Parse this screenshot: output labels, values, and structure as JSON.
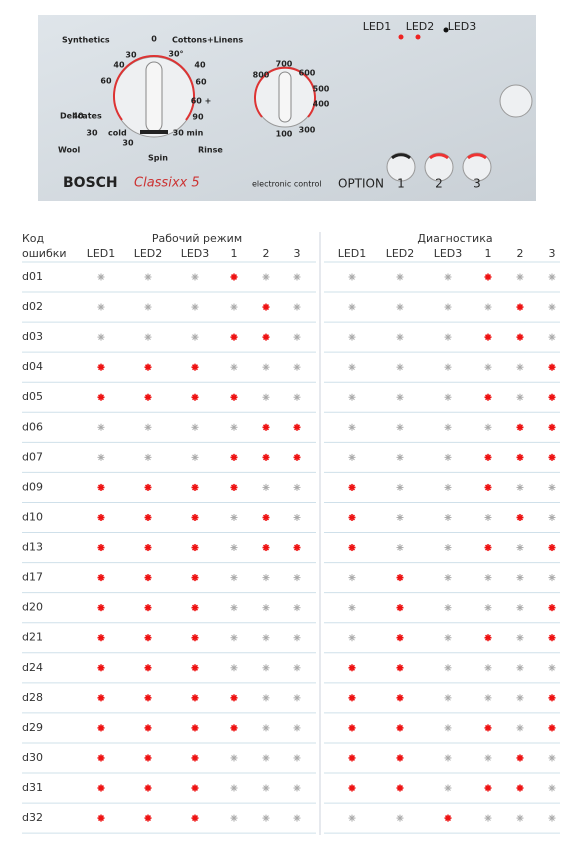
{
  "panel": {
    "brand": "BOSCH",
    "model": "Classixx 5",
    "subtitle": "electronic control",
    "option": "OPTION",
    "leds": [
      "LED1",
      "LED2",
      "LED3"
    ],
    "buttons": [
      "1",
      "2",
      "3"
    ],
    "programs": [
      "Synthetics",
      "Cottons+Linens",
      "Delicates",
      "Wool",
      "cold",
      "Spin",
      "Rinse"
    ],
    "temperature_marks": [
      "0",
      "30°",
      "40",
      "60",
      "60 +",
      "90",
      "30 min",
      "30",
      "40",
      "60",
      "40",
      "30",
      "30"
    ],
    "spin_marks": [
      "800",
      "700",
      "600",
      "500",
      "400",
      "300",
      "100"
    ]
  },
  "table": {
    "code_header": [
      "Код",
      "ошибки"
    ],
    "groups": [
      "Рабочий режим",
      "Диагностика"
    ],
    "columns": [
      "LED1",
      "LED2",
      "LED3",
      "1",
      "2",
      "3"
    ],
    "rows": [
      {
        "code": "d01",
        "work": [
          false,
          false,
          false,
          true,
          false,
          false
        ],
        "diagnostics": [
          false,
          false,
          false,
          true,
          false,
          false
        ]
      },
      {
        "code": "d02",
        "work": [
          false,
          false,
          false,
          false,
          true,
          false
        ],
        "diagnostics": [
          false,
          false,
          false,
          false,
          true,
          false
        ]
      },
      {
        "code": "d03",
        "work": [
          false,
          false,
          false,
          true,
          true,
          false
        ],
        "diagnostics": [
          false,
          false,
          false,
          true,
          true,
          false
        ]
      },
      {
        "code": "d04",
        "work": [
          true,
          true,
          true,
          false,
          false,
          false
        ],
        "diagnostics": [
          false,
          false,
          false,
          false,
          false,
          true
        ]
      },
      {
        "code": "d05",
        "work": [
          true,
          true,
          true,
          true,
          false,
          false
        ],
        "diagnostics": [
          false,
          false,
          false,
          true,
          false,
          true
        ]
      },
      {
        "code": "d06",
        "work": [
          false,
          false,
          false,
          false,
          true,
          true
        ],
        "diagnostics": [
          false,
          false,
          false,
          false,
          true,
          true
        ]
      },
      {
        "code": "d07",
        "work": [
          false,
          false,
          false,
          true,
          true,
          true
        ],
        "diagnostics": [
          false,
          false,
          false,
          true,
          true,
          true
        ]
      },
      {
        "code": "d09",
        "work": [
          true,
          true,
          true,
          true,
          false,
          false
        ],
        "diagnostics": [
          true,
          false,
          false,
          true,
          false,
          false
        ]
      },
      {
        "code": "d10",
        "work": [
          true,
          true,
          true,
          false,
          true,
          false
        ],
        "diagnostics": [
          true,
          false,
          false,
          false,
          true,
          false
        ]
      },
      {
        "code": "d13",
        "work": [
          true,
          true,
          true,
          false,
          true,
          true
        ],
        "diagnostics": [
          true,
          false,
          false,
          true,
          false,
          true
        ]
      },
      {
        "code": "d17",
        "work": [
          true,
          true,
          true,
          false,
          false,
          false
        ],
        "diagnostics": [
          false,
          true,
          false,
          false,
          false,
          false
        ]
      },
      {
        "code": "d20",
        "work": [
          true,
          true,
          true,
          false,
          false,
          false
        ],
        "diagnostics": [
          false,
          true,
          false,
          false,
          false,
          true
        ]
      },
      {
        "code": "d21",
        "work": [
          true,
          true,
          true,
          false,
          false,
          false
        ],
        "diagnostics": [
          false,
          true,
          false,
          true,
          false,
          true
        ]
      },
      {
        "code": "d24",
        "work": [
          true,
          true,
          true,
          false,
          false,
          false
        ],
        "diagnostics": [
          true,
          true,
          false,
          false,
          false,
          false
        ]
      },
      {
        "code": "d28",
        "work": [
          true,
          true,
          true,
          true,
          false,
          false
        ],
        "diagnostics": [
          true,
          true,
          false,
          false,
          false,
          true
        ]
      },
      {
        "code": "d29",
        "work": [
          true,
          true,
          true,
          true,
          false,
          false
        ],
        "diagnostics": [
          true,
          true,
          false,
          true,
          false,
          true
        ]
      },
      {
        "code": "d30",
        "work": [
          true,
          true,
          true,
          false,
          false,
          false
        ],
        "diagnostics": [
          true,
          true,
          false,
          false,
          true,
          false
        ]
      },
      {
        "code": "d31",
        "work": [
          true,
          true,
          true,
          false,
          false,
          false
        ],
        "diagnostics": [
          true,
          true,
          false,
          true,
          true,
          false
        ]
      },
      {
        "code": "d32",
        "work": [
          true,
          true,
          true,
          false,
          false,
          false
        ],
        "diagnostics": [
          false,
          false,
          true,
          false,
          false,
          false
        ]
      }
    ]
  }
}
